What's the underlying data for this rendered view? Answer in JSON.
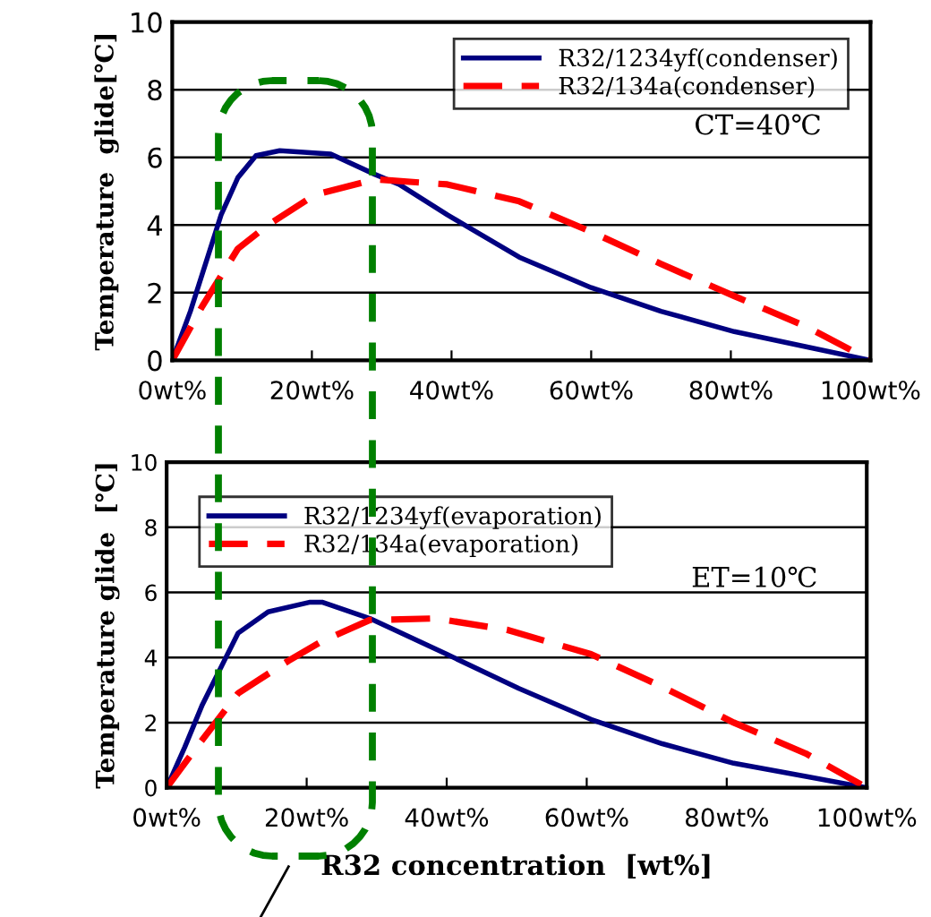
{
  "chart_data": [
    {
      "type": "line",
      "ylabel": "Temperature  glide[℃]",
      "annotations": [
        "CT=40℃"
      ],
      "legend": "top right",
      "grid": "y",
      "marker": "none",
      "xlim": [
        0,
        100
      ],
      "xticks": [
        {
          "value": 0,
          "label": "0wt%"
        },
        {
          "value": 20,
          "label": "20wt%"
        },
        {
          "value": 40,
          "label": "40wt%"
        },
        {
          "value": 60,
          "label": "60wt%"
        },
        {
          "value": 80,
          "label": "80wt%"
        },
        {
          "value": 100,
          "label": "100wt%"
        }
      ],
      "ylim": [
        0,
        10
      ],
      "yticks": [
        0,
        2,
        4,
        6,
        8,
        10
      ],
      "series": [
        {
          "name": "R32/1234yf(condenser)",
          "color": "#000080",
          "line_style": "solid",
          "x": [
            0,
            2.6,
            7,
            9.4,
            12,
            15.4,
            22.7,
            29,
            32.5,
            39.4,
            49.7,
            60,
            70,
            80.5,
            90.8,
            100
          ],
          "values": [
            0,
            1.45,
            4.3,
            5.4,
            6.05,
            6.2,
            6.1,
            5.5,
            5.2,
            4.3,
            3.05,
            2.15,
            1.45,
            0.85,
            0.4,
            0
          ]
        },
        {
          "name": "R32/134a(condenser)",
          "color": "#ff0000",
          "line_style": "dashed",
          "x": [
            0,
            4.3,
            9.4,
            13.7,
            20.5,
            29,
            39.4,
            49.7,
            60,
            70,
            80.5,
            90.8,
            100
          ],
          "values": [
            0,
            1.6,
            3.3,
            4.0,
            4.9,
            5.35,
            5.2,
            4.7,
            3.8,
            2.85,
            1.9,
            1.0,
            0
          ]
        }
      ]
    },
    {
      "type": "line",
      "ylabel": "Temperature glide  [℃]",
      "xlabel": "R32 concentration  [wt%]",
      "annotations": [
        "ET=10℃"
      ],
      "legend": "top left",
      "grid": "y",
      "marker": "none",
      "xlim": [
        0,
        100
      ],
      "xticks": [
        {
          "value": 0,
          "label": "0wt%"
        },
        {
          "value": 20,
          "label": "20wt%"
        },
        {
          "value": 40,
          "label": "40wt%"
        },
        {
          "value": 60,
          "label": "60wt%"
        },
        {
          "value": 80,
          "label": "80wt%"
        },
        {
          "value": 100,
          "label": "100wt%"
        }
      ],
      "ylim": [
        0,
        10
      ],
      "yticks": [
        0,
        2,
        4,
        6,
        8,
        10
      ],
      "series": [
        {
          "name": "R32/1234yf(evaporation)",
          "color": "#000080",
          "line_style": "solid",
          "x": [
            0,
            2.6,
            5.1,
            10.2,
            14.5,
            20.5,
            22.2,
            29,
            40,
            50.3,
            60.6,
            70.8,
            81,
            91.3,
            100
          ],
          "values": [
            0,
            1.25,
            2.55,
            4.75,
            5.4,
            5.7,
            5.7,
            5.2,
            4.1,
            3.05,
            2.1,
            1.35,
            0.75,
            0.35,
            0
          ]
        },
        {
          "name": "R32/134a(evaporation)",
          "color": "#ff0000",
          "line_style": "dashed",
          "x": [
            0,
            4.3,
            10.2,
            17.4,
            22.2,
            29,
            38.4,
            48.6,
            60.6,
            70.8,
            81,
            91.3,
            100
          ],
          "values": [
            0,
            1.25,
            2.9,
            3.9,
            4.5,
            5.15,
            5.2,
            4.85,
            4.1,
            3.1,
            2.0,
            1.05,
            0
          ]
        }
      ]
    }
  ]
}
